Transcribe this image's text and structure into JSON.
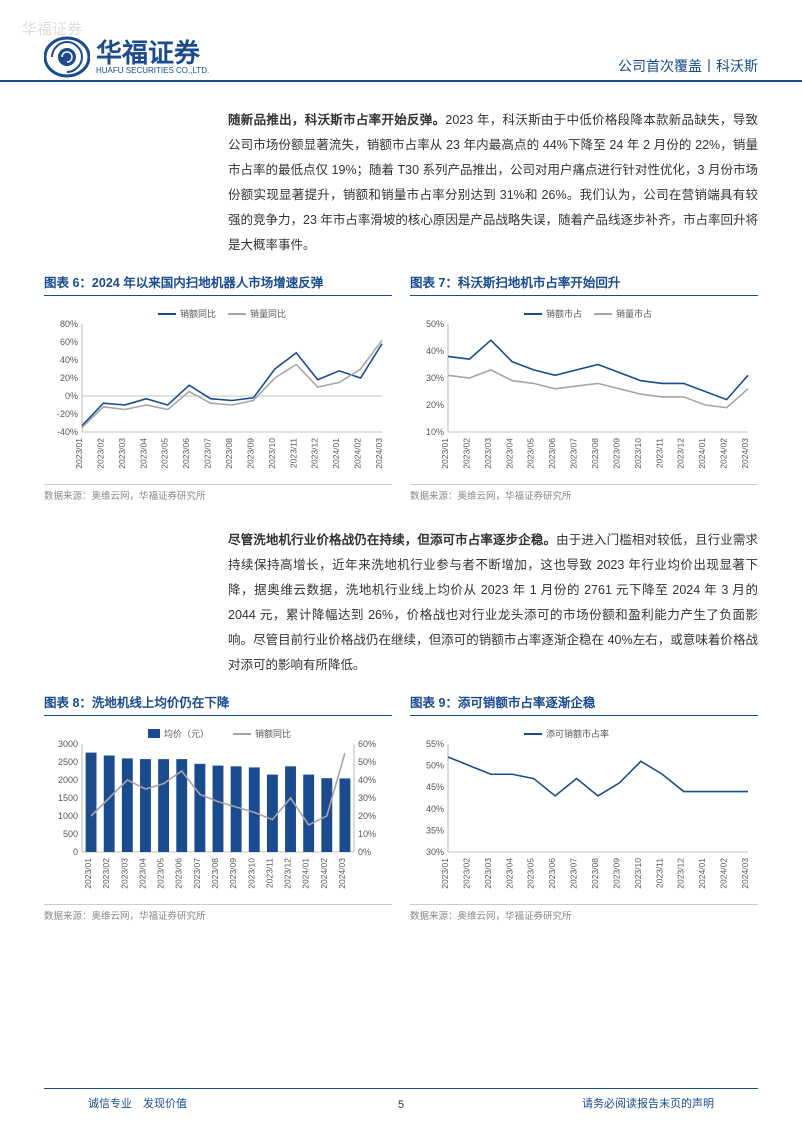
{
  "watermark": "华福证券",
  "header": {
    "logo_cn": "华福证券",
    "logo_en": "HUAFU SECURITIES CO.,LTD.",
    "right": "公司首次覆盖丨科沃斯"
  },
  "para1_bold": "随新品推出，科沃斯市占率开始反弹。",
  "para1_rest": "2023 年，科沃斯由于中低价格段降本款新品缺失，导致公司市场份额显著流失，销额市占率从 23 年内最高点的 44%下降至 24 年 2 月份的 22%，销量市占率的最低点仅 19%；随着 T30 系列产品推出，公司对用户痛点进行针对性优化，3 月份市场份额实现显著提升，销额和销量市占率分别达到 31%和 26%。我们认为，公司在营销端具有较强的竞争力，23 年市占率滑坡的核心原因是产品战略失误，随着产品线逐步补齐，市占率回升将是大概率事件。",
  "chart6": {
    "title": "图表 6：2024 年以来国内扫地机器人市场增速反弹",
    "legend": [
      "销额同比",
      "销量同比"
    ],
    "categories": [
      "2023/01",
      "2023/02",
      "2023/03",
      "2023/04",
      "2023/05",
      "2023/06",
      "2023/07",
      "2023/08",
      "2023/09",
      "2023/10",
      "2023/11",
      "2023/12",
      "2024/01",
      "2024/02",
      "2024/03"
    ],
    "series1": [
      -33,
      -8,
      -10,
      -3,
      -10,
      12,
      -3,
      -5,
      -2,
      30,
      48,
      18,
      28,
      20,
      58
    ],
    "series2": [
      -35,
      -12,
      -15,
      -10,
      -15,
      5,
      -8,
      -10,
      -5,
      20,
      35,
      10,
      15,
      30,
      62
    ],
    "ylim": [
      -40,
      80
    ],
    "ytick_step": 20,
    "colors": [
      "#1a4b8f",
      "#a6a6a6"
    ],
    "source": "数据来源：奥维云网，华福证券研究所"
  },
  "chart7": {
    "title": "图表 7：科沃斯扫地机市占率开始回升",
    "legend": [
      "销额市占",
      "销量市占"
    ],
    "categories": [
      "2023/01",
      "2023/02",
      "2023/03",
      "2023/04",
      "2023/05",
      "2023/06",
      "2023/07",
      "2023/08",
      "2023/09",
      "2023/10",
      "2023/11",
      "2023/12",
      "2024/01",
      "2024/02",
      "2024/03"
    ],
    "series1": [
      38,
      37,
      44,
      36,
      33,
      31,
      33,
      35,
      32,
      29,
      28,
      28,
      25,
      22,
      31
    ],
    "series2": [
      31,
      30,
      33,
      29,
      28,
      26,
      27,
      28,
      26,
      24,
      23,
      23,
      20,
      19,
      26
    ],
    "ylim": [
      10,
      50
    ],
    "ytick_step": 10,
    "colors": [
      "#1a4b8f",
      "#a6a6a6"
    ],
    "source": "数据来源：奥维云网，华福证券研究所"
  },
  "para2_bold": "尽管洗地机行业价格战仍在持续，但添可市占率逐步企稳。",
  "para2_rest": "由于进入门槛相对较低，且行业需求持续保持高增长，近年来洗地机行业参与者不断增加，这也导致 2023 年行业均价出现显著下降，据奥维云数据，洗地机行业线上均价从 2023 年 1 月份的 2761 元下降至 2024 年 3 月的 2044 元，累计降幅达到 26%，价格战也对行业龙头添可的市场份额和盈利能力产生了负面影响。尽管目前行业价格战仍在继续，但添可的销额市占率逐渐企稳在 40%左右，或意味着价格战对添可的影响有所降低。",
  "chart8": {
    "title": "图表 8：洗地机线上均价仍在下降",
    "legend": [
      "均价（元）",
      "销额同比"
    ],
    "categories": [
      "2023/01",
      "2023/02",
      "2023/03",
      "2023/04",
      "2023/05",
      "2023/06",
      "2023/07",
      "2023/08",
      "2023/09",
      "2023/10",
      "2023/11",
      "2023/12",
      "2024/01",
      "2024/02",
      "2024/03"
    ],
    "bars": [
      2761,
      2680,
      2600,
      2580,
      2580,
      2580,
      2450,
      2400,
      2380,
      2350,
      2150,
      2380,
      2150,
      2050,
      2044
    ],
    "line": [
      20,
      30,
      40,
      35,
      38,
      45,
      32,
      28,
      25,
      22,
      18,
      30,
      15,
      20,
      55
    ],
    "ylim_left": [
      0,
      3000
    ],
    "ytick_left": 500,
    "ylim_right": [
      0,
      60
    ],
    "ytick_right": 10,
    "colors": {
      "bar": "#1a4b8f",
      "line": "#a6a6a6"
    },
    "source": "数据来源：奥维云网，华福证券研究所"
  },
  "chart9": {
    "title": "图表 9：添可销额市占率逐渐企稳",
    "legend": [
      "添可销额市占率"
    ],
    "categories": [
      "2023/01",
      "2023/02",
      "2023/03",
      "2023/04",
      "2023/05",
      "2023/06",
      "2023/07",
      "2023/08",
      "2023/09",
      "2023/10",
      "2023/11",
      "2023/12",
      "2024/01",
      "2024/02",
      "2024/03"
    ],
    "series1": [
      52,
      50,
      48,
      48,
      47,
      43,
      47,
      43,
      46,
      51,
      48,
      44,
      44,
      44,
      44
    ],
    "ylim": [
      30,
      55
    ],
    "ytick_step": 5,
    "colors": [
      "#1a4b8f"
    ],
    "source": "数据来源：奥维云网，华福证券研究所"
  },
  "footer": {
    "left": "诚信专业　发现价值",
    "page": "5",
    "right": "请务必阅读报告末页的声明"
  }
}
